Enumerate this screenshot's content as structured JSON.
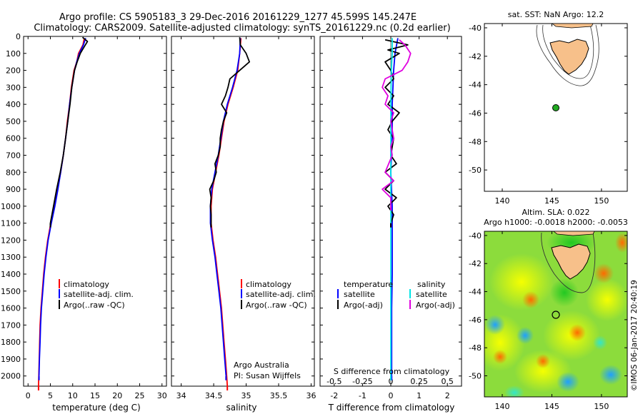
{
  "header": {
    "line1": "Argo profile: CS 5905183_3 29-Dec-2016 20161229_1277 45.599S 145.247E",
    "line2": "Climatology: CARS2009. Satellite-adjusted climatology: synTS_20161229.nc (0.2d earlier)"
  },
  "colors": {
    "climatology": "#ff0000",
    "satellite": "#0000ff",
    "argo": "#000000",
    "satellite_salinity": "#00e5e5",
    "argo_salinity": "#e000e0",
    "land": "#f7c08a",
    "marker_sst": "#22aa22"
  },
  "legends": {
    "temp": [
      "climatology",
      "satellite-adj. clim.",
      "Argo(..raw -QC)"
    ],
    "sal": [
      "climatology",
      "satellite-adj. clim.",
      "Argo(..raw -QC)"
    ],
    "diff_temp_title": "temperature",
    "diff_temp": [
      "satellite",
      "Argo(-adj)"
    ],
    "diff_sal_title": "salinity",
    "diff_sal": [
      "satellite",
      "Argo(-adj)"
    ]
  },
  "notes": {
    "operator": "Argo Australia",
    "pi": "PI: Susan Wijffels",
    "credit": "©IMOS 06-Jan-2017 20:40:19"
  },
  "map_sst": {
    "title": "sat. SST: NaN Argo: 12.2"
  },
  "map_sla": {
    "title1": "Altim. SLA: 0.022",
    "title2": "Argo h1000: -0.0018 h2000: -0.0053"
  },
  "chart_data": [
    {
      "type": "line",
      "id": "temperature",
      "xlabel": "temperature (deg C)",
      "ylabel": "",
      "xlim": [
        -1,
        31
      ],
      "ylim": [
        0,
        2060
      ],
      "xticks": [
        0,
        5,
        10,
        15,
        20,
        25,
        30
      ],
      "yticks": [
        0,
        100,
        200,
        300,
        400,
        500,
        600,
        700,
        800,
        900,
        1000,
        1100,
        1200,
        1300,
        1400,
        1500,
        1600,
        1700,
        1800,
        1900,
        2000
      ],
      "series": [
        {
          "name": "climatology",
          "color": "red",
          "y": [
            10,
            50,
            100,
            150,
            200,
            300,
            400,
            500,
            600,
            700,
            800,
            900,
            1000,
            1100,
            1200,
            1300,
            1400,
            1500,
            1600,
            1700,
            1800,
            1900,
            2000,
            2060
          ],
          "x": [
            12.6,
            12.3,
            11.3,
            10.9,
            10.3,
            9.7,
            9.3,
            8.8,
            8.4,
            7.9,
            7.3,
            6.6,
            5.9,
            5.1,
            4.4,
            3.9,
            3.5,
            3.2,
            2.9,
            2.7,
            2.6,
            2.5,
            2.4,
            2.35
          ]
        },
        {
          "name": "satellite-adj. clim.",
          "color": "blue",
          "y": [
            10,
            50,
            100,
            150,
            200,
            300,
            400,
            500,
            600,
            700,
            800,
            900,
            1000,
            1100,
            1200,
            1300,
            1400,
            1500,
            1600,
            1700,
            1800,
            1900,
            2000
          ],
          "x": [
            12.9,
            12.4,
            11.5,
            10.9,
            10.4,
            9.8,
            9.3,
            8.9,
            8.4,
            7.9,
            7.3,
            6.7,
            6.0,
            5.2,
            4.5,
            4.0,
            3.6,
            3.3,
            3.0,
            2.8,
            2.7,
            2.55,
            2.45
          ]
        },
        {
          "name": "Argo(..raw -QC)",
          "color": "black",
          "y": [
            5,
            30,
            60,
            100,
            150,
            200,
            300,
            400,
            500,
            600,
            700,
            800,
            900,
            1000,
            1100
          ],
          "x": [
            12.2,
            13.3,
            12.6,
            11.7,
            11.0,
            10.4,
            9.8,
            9.4,
            8.9,
            8.4,
            7.9,
            7.2,
            6.4,
            5.7,
            5.0
          ]
        }
      ]
    },
    {
      "type": "line",
      "id": "salinity",
      "xlabel": "salinity",
      "ylabel": "",
      "xlim": [
        33.85,
        36.05
      ],
      "ylim": [
        0,
        2060
      ],
      "xticks": [
        34,
        34.5,
        35,
        35.5,
        36
      ],
      "series": [
        {
          "name": "climatology",
          "color": "red",
          "y": [
            10,
            100,
            200,
            300,
            400,
            500,
            600,
            700,
            800,
            900,
            1000,
            1100,
            1200,
            1300,
            1400,
            1500,
            1600,
            1700,
            1800,
            1900,
            2000,
            2060
          ],
          "x": [
            34.92,
            34.9,
            34.87,
            34.8,
            34.72,
            34.66,
            34.62,
            34.58,
            34.53,
            34.48,
            34.46,
            34.46,
            34.49,
            34.53,
            34.56,
            34.59,
            34.62,
            34.64,
            34.66,
            34.68,
            34.7,
            34.71
          ]
        },
        {
          "name": "satellite-adj. clim.",
          "color": "blue",
          "y": [
            10,
            100,
            200,
            300,
            400,
            500,
            600,
            700,
            800,
            900,
            1000,
            1100,
            1200,
            1300,
            1400,
            1500,
            1600,
            1700,
            1800,
            1900,
            2000
          ],
          "x": [
            34.91,
            34.9,
            34.86,
            34.79,
            34.71,
            34.65,
            34.61,
            34.57,
            34.52,
            34.47,
            34.45,
            34.45,
            34.48,
            34.52,
            34.55,
            34.58,
            34.61,
            34.63,
            34.65,
            34.67,
            34.69
          ]
        },
        {
          "name": "Argo(..raw -QC)",
          "color": "black",
          "y": [
            5,
            50,
            100,
            150,
            200,
            250,
            300,
            350,
            400,
            450,
            500,
            550,
            600,
            650,
            700,
            750,
            800,
            850,
            900,
            950,
            1000,
            1050,
            1100
          ],
          "x": [
            34.9,
            34.91,
            35.0,
            35.05,
            34.9,
            34.75,
            34.72,
            34.68,
            34.62,
            34.7,
            34.65,
            34.62,
            34.6,
            34.6,
            34.57,
            34.52,
            34.54,
            34.5,
            34.44,
            34.46,
            34.45,
            34.46,
            34.46
          ]
        }
      ]
    },
    {
      "type": "line",
      "id": "difference",
      "xlabel": "T difference from climatology",
      "xlabel_top": "S difference from climatology",
      "xlim": [
        -2.5,
        2.5
      ],
      "ylim": [
        0,
        2060
      ],
      "xticks": [
        -2,
        -1,
        0,
        1,
        2
      ],
      "xticks_s_labels": [
        "-0.5",
        "-0.25",
        "0",
        "0.25",
        "0.5"
      ],
      "series": [
        {
          "name": "satellite (temperature)",
          "color": "blue",
          "y": [
            10,
            100,
            200,
            400,
            600,
            800,
            1000,
            1200,
            1400,
            1600,
            1800,
            2000
          ],
          "x": [
            0.25,
            0.15,
            0.1,
            0.05,
            0.05,
            0.0,
            0.05,
            0.05,
            0.05,
            0.03,
            0.03,
            0.03
          ]
        },
        {
          "name": "Argo(-adj) (temperature)",
          "color": "black",
          "y": [
            20,
            50,
            80,
            100,
            150,
            200,
            250,
            300,
            350,
            400,
            450,
            500,
            550,
            600,
            650,
            700,
            750,
            800,
            850,
            900,
            950,
            1000,
            1050,
            1100
          ],
          "x": [
            -0.2,
            0.6,
            -0.1,
            0.3,
            -0.2,
            0.0,
            0.1,
            -0.2,
            0.1,
            -0.1,
            0.3,
            0.05,
            -0.1,
            0.1,
            0.05,
            0.0,
            0.2,
            -0.2,
            0.1,
            -0.2,
            0.2,
            -0.1,
            0.1,
            0.0
          ]
        },
        {
          "name": "satellite (salinity)",
          "color": "cyan",
          "y": [
            10,
            100,
            200,
            400,
            600,
            800,
            1000,
            1200,
            1400,
            1600,
            1800,
            2000
          ],
          "x": [
            0.05,
            0.05,
            0.02,
            0.0,
            0.0,
            0.0,
            0.0,
            0.0,
            0.0,
            0.0,
            0.0,
            0.0
          ]
        },
        {
          "name": "Argo(-adj) (salinity)",
          "color": "magenta",
          "y": [
            20,
            50,
            100,
            150,
            200,
            250,
            300,
            350,
            400,
            450,
            500,
            550,
            600,
            650,
            700,
            800,
            850,
            900,
            950,
            1000
          ],
          "x": [
            0.3,
            0.5,
            0.7,
            0.6,
            0.4,
            -0.2,
            -0.3,
            -0.1,
            -0.2,
            0.1,
            0.0,
            0.05,
            0.1,
            0.0,
            0.05,
            -0.2,
            0.1,
            -0.3,
            0.0,
            0.0
          ]
        }
      ]
    }
  ]
}
